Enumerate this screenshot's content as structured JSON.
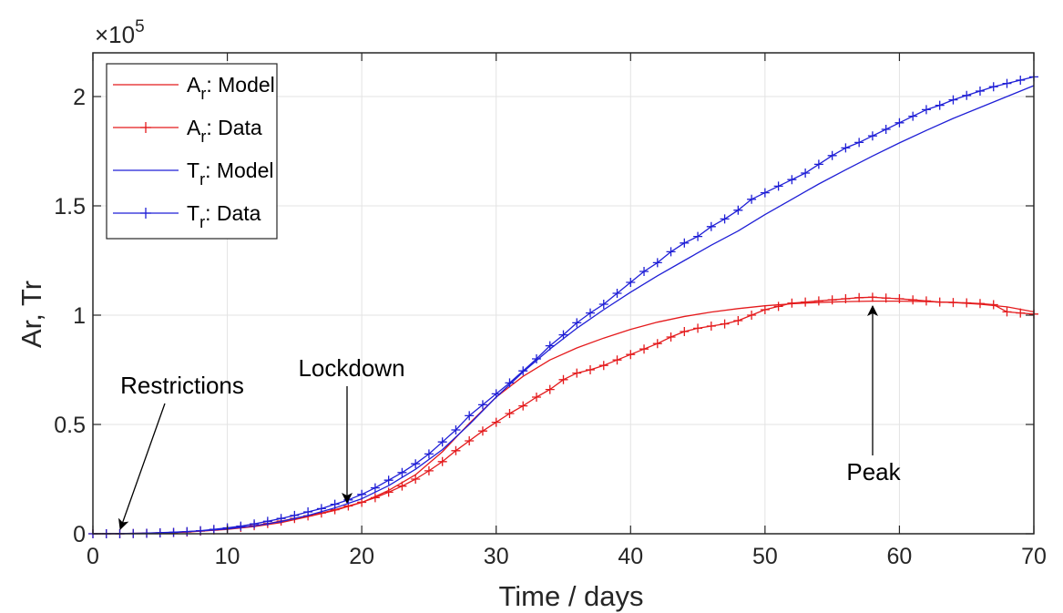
{
  "chart_data": {
    "type": "line",
    "xlabel": "Time / days",
    "ylabel": "Ar, Tr",
    "xlim": [
      0,
      70
    ],
    "ylim": [
      0,
      220000
    ],
    "xticks": [
      0,
      10,
      20,
      30,
      40,
      50,
      60,
      70
    ],
    "yticks": [
      0,
      50000,
      100000,
      150000,
      200000
    ],
    "ytick_labels": [
      "0",
      "0.5",
      "1",
      "1.5",
      "2"
    ],
    "y_exponent": {
      "base": "×10",
      "power": "5"
    },
    "grid": true,
    "legend_position": "top-left",
    "colors": {
      "Ar": "#e41a1c",
      "Tr": "#1f1fd6"
    },
    "series": [
      {
        "name": "A_r: Model",
        "legend_main": "A",
        "legend_sub": "r",
        "legend_rest": ": Model",
        "color": "#e41a1c",
        "marker": "none",
        "x": [
          0,
          2,
          4,
          6,
          8,
          10,
          12,
          14,
          16,
          18,
          20,
          22,
          24,
          26,
          28,
          30,
          32,
          34,
          36,
          38,
          40,
          42,
          44,
          46,
          48,
          50,
          52,
          54,
          56,
          58,
          60,
          62,
          64,
          66,
          68,
          70
        ],
        "y": [
          0,
          100,
          300,
          600,
          1200,
          2000,
          3300,
          5100,
          7800,
          10700,
          14300,
          19800,
          27000,
          37500,
          50500,
          62500,
          72000,
          79500,
          85000,
          89500,
          93500,
          96800,
          99400,
          101400,
          103000,
          104300,
          105200,
          105800,
          106200,
          106400,
          106400,
          106200,
          105800,
          105000,
          103800,
          101500
        ]
      },
      {
        "name": "A_r: Data",
        "legend_main": "A",
        "legend_sub": "r",
        "legend_rest": ": Data",
        "color": "#e41a1c",
        "marker": "+",
        "x": [
          0,
          1,
          2,
          3,
          4,
          5,
          6,
          7,
          8,
          9,
          10,
          11,
          12,
          13,
          14,
          15,
          16,
          17,
          18,
          19,
          20,
          21,
          22,
          23,
          24,
          25,
          26,
          27,
          28,
          29,
          30,
          31,
          32,
          33,
          34,
          35,
          36,
          37,
          38,
          39,
          40,
          41,
          42,
          43,
          44,
          45,
          46,
          47,
          48,
          49,
          50,
          51,
          52,
          53,
          54,
          55,
          56,
          57,
          58,
          59,
          60,
          61,
          62,
          63,
          64,
          65,
          66,
          67,
          68,
          69,
          70
        ],
        "y": [
          0,
          0,
          0,
          100,
          200,
          350,
          550,
          800,
          1200,
          1700,
          2300,
          2900,
          3700,
          4700,
          5800,
          7000,
          8200,
          9500,
          11000,
          12700,
          14400,
          16500,
          19000,
          21800,
          25000,
          28800,
          33000,
          38000,
          42500,
          47000,
          51000,
          55000,
          58500,
          62500,
          66000,
          70500,
          73500,
          75000,
          77000,
          79500,
          82000,
          84500,
          87000,
          90000,
          92500,
          94000,
          95000,
          96000,
          97500,
          100000,
          102500,
          104000,
          105500,
          106000,
          106500,
          107000,
          107500,
          108000,
          108200,
          107800,
          107500,
          107000,
          106500,
          106000,
          105800,
          105600,
          105300,
          104800,
          101500,
          101000,
          100500
        ]
      },
      {
        "name": "T_r: Model",
        "legend_main": "T",
        "legend_sub": "r",
        "legend_rest": ": Model",
        "color": "#1f1fd6",
        "marker": "none",
        "x": [
          0,
          2,
          4,
          6,
          8,
          10,
          12,
          14,
          16,
          18,
          20,
          22,
          24,
          26,
          28,
          30,
          32,
          34,
          36,
          38,
          40,
          42,
          44,
          46,
          48,
          50,
          52,
          54,
          56,
          58,
          60,
          62,
          64,
          66,
          68,
          70
        ],
        "y": [
          0,
          100,
          300,
          700,
          1300,
          2200,
          3600,
          5600,
          8400,
          11800,
          16000,
          22000,
          29500,
          38500,
          50000,
          62500,
          74000,
          84500,
          94000,
          102500,
          110500,
          118000,
          125000,
          132000,
          138500,
          146000,
          153000,
          160000,
          166500,
          172800,
          178800,
          184500,
          190000,
          195000,
          200000,
          205000
        ]
      },
      {
        "name": "T_r: Data",
        "legend_main": "T",
        "legend_sub": "r",
        "legend_rest": ": Data",
        "color": "#1f1fd6",
        "marker": "+",
        "x": [
          0,
          1,
          2,
          3,
          4,
          5,
          6,
          7,
          8,
          9,
          10,
          11,
          12,
          13,
          14,
          15,
          16,
          17,
          18,
          19,
          20,
          21,
          22,
          23,
          24,
          25,
          26,
          27,
          28,
          29,
          30,
          31,
          32,
          33,
          34,
          35,
          36,
          37,
          38,
          39,
          40,
          41,
          42,
          43,
          44,
          45,
          46,
          47,
          48,
          49,
          50,
          51,
          52,
          53,
          54,
          55,
          56,
          57,
          58,
          59,
          60,
          61,
          62,
          63,
          64,
          65,
          66,
          67,
          68,
          69,
          70
        ],
        "y": [
          0,
          0,
          0,
          100,
          200,
          400,
          650,
          1000,
          1400,
          2000,
          2700,
          3500,
          4500,
          5700,
          7000,
          8400,
          10000,
          11500,
          13500,
          15500,
          18000,
          21000,
          24500,
          28000,
          32000,
          36500,
          42000,
          47500,
          54000,
          59000,
          64000,
          69000,
          74500,
          80000,
          86000,
          91000,
          96500,
          101000,
          105000,
          110000,
          115000,
          120000,
          124000,
          129000,
          133000,
          136000,
          140500,
          144000,
          148000,
          153000,
          156000,
          159000,
          162000,
          165000,
          169000,
          173000,
          176500,
          179000,
          182000,
          185000,
          188000,
          191000,
          194000,
          196000,
          198500,
          200500,
          202500,
          204500,
          206000,
          207500,
          209000
        ]
      }
    ],
    "annotations": [
      {
        "text": "Restrictions",
        "x": 2,
        "y": 0
      },
      {
        "text": "Lockdown",
        "x": 19,
        "y": 15000
      },
      {
        "text": "Peak",
        "x": 58,
        "y": 108000
      }
    ]
  }
}
